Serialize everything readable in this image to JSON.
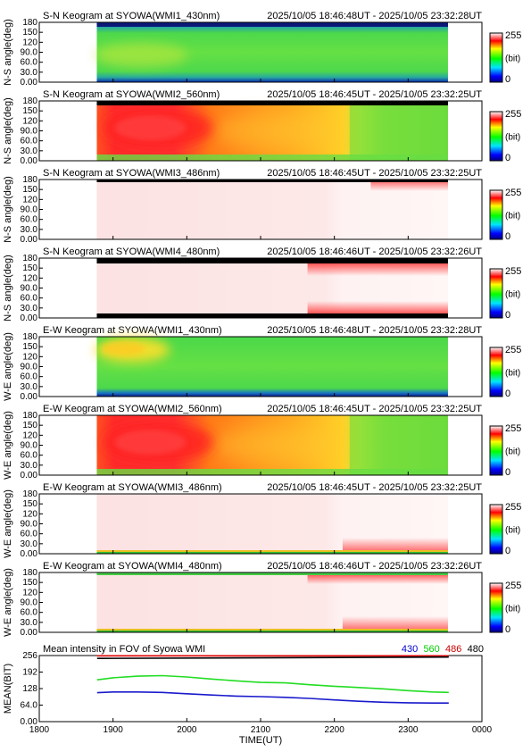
{
  "chart_data": [
    {
      "type": "heatmap",
      "title": "S-N Keogram at SYOWA(WMI1_430nm)",
      "time_range": "2025/10/05 18:46:48UT - 2025/10/05 23:32:28UT",
      "ylabel": "N-S angle(deg)",
      "yticks": [
        "0.00",
        "30.0",
        "60.0",
        "90.0",
        "120",
        "150",
        "180"
      ],
      "colorbar": {
        "min": "0",
        "max": "255",
        "unit": "(bit)"
      },
      "data_window": {
        "start": "1846",
        "end": "2332"
      },
      "pattern": "green_blue_edges_faint_yellow"
    },
    {
      "type": "heatmap",
      "title": "S-N Keogram at SYOWA(WMI2_560nm)",
      "time_range": "2025/10/05 18:46:45UT - 2025/10/05 23:32:25UT",
      "ylabel": "N-S angle(deg)",
      "yticks": [
        "0.00",
        "30.0",
        "60.0",
        "90.0",
        "120",
        "150",
        "180"
      ],
      "colorbar": {
        "min": "0",
        "max": "255",
        "unit": "(bit)"
      },
      "data_window": {
        "start": "1846",
        "end": "2332"
      },
      "pattern": "red_orange_aurora"
    },
    {
      "type": "heatmap",
      "title": "S-N Keogram at SYOWA(WMI3_486nm)",
      "time_range": "2025/10/05 18:46:45UT - 2025/10/05 23:32:25UT",
      "ylabel": "N-S angle(deg)",
      "yticks": [
        "0.00",
        "30.0",
        "60.0",
        "90.0",
        "120",
        "150",
        "180"
      ],
      "colorbar": {
        "min": "0",
        "max": "255",
        "unit": "(bit)"
      },
      "data_window": {
        "start": "1846",
        "end": "2332"
      },
      "pattern": "saturated_pale"
    },
    {
      "type": "heatmap",
      "title": "S-N Keogram at SYOWA(WMI4_480nm)",
      "time_range": "2025/10/05 18:46:46UT - 2025/10/05 23:32:26UT",
      "ylabel": "N-S angle(deg)",
      "yticks": [
        "0.00",
        "30.0",
        "60.0",
        "90.0",
        "120",
        "150",
        "180"
      ],
      "colorbar": {
        "min": "0",
        "max": "255",
        "unit": "(bit)"
      },
      "data_window": {
        "start": "1846",
        "end": "2332"
      },
      "pattern": "saturated_pale_edges"
    },
    {
      "type": "heatmap",
      "title": "E-W Keogram at SYOWA(WMI1_430nm)",
      "time_range": "2025/10/05 18:46:48UT - 2025/10/05 23:32:28UT",
      "ylabel": "W-E angle(deg)",
      "yticks": [
        "0.00",
        "30.0",
        "60.0",
        "90.0",
        "120",
        "150",
        "180"
      ],
      "colorbar": {
        "min": "0",
        "max": "255",
        "unit": "(bit)"
      },
      "data_window": {
        "start": "1846",
        "end": "2332"
      },
      "pattern": "green_yellow_patch"
    },
    {
      "type": "heatmap",
      "title": "E-W Keogram at SYOWA(WMI2_560nm)",
      "time_range": "2025/10/05 18:46:45UT - 2025/10/05 23:32:25UT",
      "ylabel": "W-E angle(deg)",
      "yticks": [
        "0.00",
        "30.0",
        "60.0",
        "90.0",
        "120",
        "150",
        "180"
      ],
      "colorbar": {
        "min": "0",
        "max": "255",
        "unit": "(bit)"
      },
      "data_window": {
        "start": "1846",
        "end": "2332"
      },
      "pattern": "red_orange_aurora"
    },
    {
      "type": "heatmap",
      "title": "E-W Keogram at SYOWA(WMI3_486nm)",
      "time_range": "2025/10/05 18:46:45UT - 2025/10/05 23:32:25UT",
      "ylabel": "W-E angle(deg)",
      "yticks": [
        "0.00",
        "30.0",
        "60.0",
        "90.0",
        "120",
        "150",
        "180"
      ],
      "colorbar": {
        "min": "0",
        "max": "255",
        "unit": "(bit)"
      },
      "data_window": {
        "start": "1846",
        "end": "2332"
      },
      "pattern": "saturated_pale_bottom"
    },
    {
      "type": "heatmap",
      "title": "E-W Keogram at SYOWA(WMI4_480nm)",
      "time_range": "2025/10/05 18:46:46UT - 2025/10/05 23:32:26UT",
      "ylabel": "W-E angle(deg)",
      "yticks": [
        "0.00",
        "30.0",
        "60.0",
        "90.0",
        "120",
        "150",
        "180"
      ],
      "colorbar": {
        "min": "0",
        "max": "255",
        "unit": "(bit)"
      },
      "data_window": {
        "start": "1846",
        "end": "2332"
      },
      "pattern": "saturated_pale_bottom"
    },
    {
      "type": "line",
      "title": "Mean intensity in FOV of Syowa WMI",
      "xlabel": "TIME(UT)",
      "ylabel": "MEAN(BIT)",
      "xticks": [
        "1800",
        "1900",
        "2000",
        "2100",
        "2200",
        "2300",
        "0000"
      ],
      "yticks": [
        "0.00",
        "64.0",
        "128",
        "192",
        "256"
      ],
      "ylim": [
        0,
        256
      ],
      "xlim_minutes": [
        0,
        360
      ],
      "legend": [
        {
          "label": "430",
          "color": "#0000cc"
        },
        {
          "label": "560",
          "color": "#00cc00"
        },
        {
          "label": "486",
          "color": "#cc0000"
        },
        {
          "label": "480",
          "color": "#000000"
        }
      ],
      "series": [
        {
          "name": "430",
          "color": "#1a1acc",
          "x": [
            47,
            60,
            80,
            100,
            120,
            140,
            160,
            180,
            200,
            220,
            240,
            260,
            280,
            300,
            320,
            333
          ],
          "y": [
            112,
            115,
            115,
            113,
            108,
            103,
            99,
            97,
            94,
            90,
            84,
            79,
            75,
            73,
            72,
            72
          ]
        },
        {
          "name": "560",
          "color": "#22dd22",
          "x": [
            47,
            60,
            80,
            100,
            120,
            140,
            160,
            180,
            200,
            220,
            240,
            260,
            280,
            300,
            320,
            333
          ],
          "y": [
            162,
            170,
            176,
            178,
            173,
            165,
            158,
            152,
            150,
            143,
            137,
            132,
            127,
            120,
            115,
            113
          ]
        },
        {
          "name": "486",
          "color": "#dd0000",
          "x": [
            47,
            333
          ],
          "y": [
            255,
            255
          ]
        },
        {
          "name": "480",
          "color": "#000000",
          "x": [
            47,
            333
          ],
          "y": [
            245,
            250
          ]
        }
      ]
    }
  ]
}
